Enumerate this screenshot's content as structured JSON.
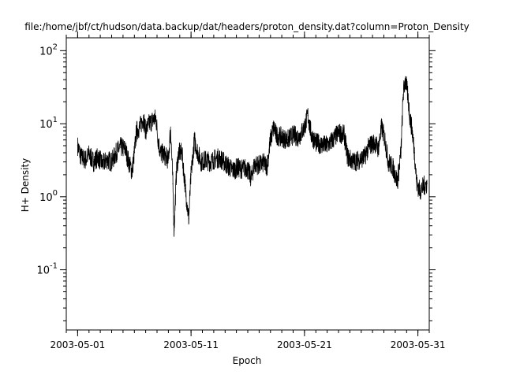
{
  "chart_data": {
    "type": "line",
    "title": "file:/home/jbf/ct/hudson/data.backup/dat/headers/proton_density.dat?column=Proton_Density",
    "xlabel": "Epoch",
    "ylabel": "H+ Density",
    "yscale": "log",
    "xlim": [
      "2003-04-30T00:00:00Z",
      "2003-06-01T00:00:00Z"
    ],
    "ylim": [
      0.015,
      150
    ],
    "grid": false,
    "line_color": "#000000",
    "x_ticks": [
      {
        "value": "2003-05-01T00:00:00Z",
        "label": "2003-05-01"
      },
      {
        "value": "2003-05-11T00:00:00Z",
        "label": "2003-05-11"
      },
      {
        "value": "2003-05-21T00:00:00Z",
        "label": "2003-05-21"
      },
      {
        "value": "2003-05-31T00:00:00Z",
        "label": "2003-05-31"
      }
    ],
    "y_ticks": [
      {
        "value": 0.1,
        "base": "10",
        "exp": "-1"
      },
      {
        "value": 1,
        "base": "10",
        "exp": "0"
      },
      {
        "value": 10,
        "base": "10",
        "exp": "1"
      },
      {
        "value": 100,
        "base": "10",
        "exp": "2"
      }
    ],
    "points": [
      [
        "2003-05-01T00:00",
        5
      ],
      [
        "2003-05-01T07:12",
        3.5
      ],
      [
        "2003-05-01T16:48",
        3.2
      ],
      [
        "2003-05-02T00:00",
        3.8
      ],
      [
        "2003-05-02T09:36",
        3.0
      ],
      [
        "2003-05-02T19:12",
        3.5
      ],
      [
        "2003-05-03T04:48",
        2.8
      ],
      [
        "2003-05-03T14:24",
        3.2
      ],
      [
        "2003-05-04T00:00",
        3.0
      ],
      [
        "2003-05-04T09:36",
        4.0
      ],
      [
        "2003-05-04T19:12",
        4.8
      ],
      [
        "2003-05-05T04:48",
        4.5
      ],
      [
        "2003-05-05T12:00",
        3.0
      ],
      [
        "2003-05-05T19:12",
        2.2
      ],
      [
        "2003-05-06T00:00",
        4.0
      ],
      [
        "2003-05-06T04:48",
        8
      ],
      [
        "2003-05-06T12:00",
        9
      ],
      [
        "2003-05-06T19:12",
        12
      ],
      [
        "2003-05-07T00:00",
        8
      ],
      [
        "2003-05-07T07:12",
        10
      ],
      [
        "2003-05-07T14:24",
        11
      ],
      [
        "2003-05-07T21:36",
        12
      ],
      [
        "2003-05-08T02:24",
        6
      ],
      [
        "2003-05-08T07:12",
        4
      ],
      [
        "2003-05-08T14:24",
        3.8
      ],
      [
        "2003-05-09T00:00",
        3.2
      ],
      [
        "2003-05-09T04:48",
        9
      ],
      [
        "2003-05-09T09:36",
        1.5
      ],
      [
        "2003-05-09T12:00",
        0.35
      ],
      [
        "2003-05-09T16:48",
        2
      ],
      [
        "2003-05-09T21:36",
        4
      ],
      [
        "2003-05-10T04:48",
        4
      ],
      [
        "2003-05-10T12:00",
        1.3
      ],
      [
        "2003-05-10T19:12",
        0.5
      ],
      [
        "2003-05-11T00:00",
        2
      ],
      [
        "2003-05-11T07:12",
        6
      ],
      [
        "2003-05-11T14:24",
        4
      ],
      [
        "2003-05-11T21:36",
        3
      ],
      [
        "2003-05-12T07:12",
        3.2
      ],
      [
        "2003-05-12T16:48",
        3
      ],
      [
        "2003-05-13T02:24",
        3.3
      ],
      [
        "2003-05-13T12:00",
        3.4
      ],
      [
        "2003-05-13T21:36",
        3.0
      ],
      [
        "2003-05-14T07:12",
        2.6
      ],
      [
        "2003-05-14T16:48",
        2.3
      ],
      [
        "2003-05-15T02:24",
        2.5
      ],
      [
        "2003-05-15T12:00",
        2.4
      ],
      [
        "2003-05-15T21:36",
        2.5
      ],
      [
        "2003-05-16T07:12",
        1.8
      ],
      [
        "2003-05-16T14:24",
        2.8
      ],
      [
        "2003-05-17T00:00",
        2.7
      ],
      [
        "2003-05-17T09:36",
        2.9
      ],
      [
        "2003-05-17T16:48",
        2.6
      ],
      [
        "2003-05-18T00:00",
        6
      ],
      [
        "2003-05-18T07:12",
        9
      ],
      [
        "2003-05-18T12:00",
        7
      ],
      [
        "2003-05-19T00:00",
        6.5
      ],
      [
        "2003-05-19T12:00",
        6
      ],
      [
        "2003-05-20T00:00",
        7
      ],
      [
        "2003-05-20T12:00",
        6.5
      ],
      [
        "2003-05-21T00:00",
        9
      ],
      [
        "2003-05-21T07:12",
        13
      ],
      [
        "2003-05-21T14:24",
        7
      ],
      [
        "2003-05-22T00:00",
        5.5
      ],
      [
        "2003-05-22T12:00",
        5.2
      ],
      [
        "2003-05-23T00:00",
        5.0
      ],
      [
        "2003-05-23T12:00",
        6
      ],
      [
        "2003-05-24T00:00",
        7.5
      ],
      [
        "2003-05-24T12:00",
        7
      ],
      [
        "2003-05-24T19:12",
        3.5
      ],
      [
        "2003-05-25T07:12",
        3
      ],
      [
        "2003-05-25T19:12",
        3.2
      ],
      [
        "2003-05-26T07:12",
        3.5
      ],
      [
        "2003-05-26T16:48",
        5
      ],
      [
        "2003-05-27T04:48",
        5.5
      ],
      [
        "2003-05-27T12:00",
        4.5
      ],
      [
        "2003-05-27T19:12",
        9
      ],
      [
        "2003-05-28T02:24",
        6
      ],
      [
        "2003-05-28T09:36",
        3
      ],
      [
        "2003-05-28T19:12",
        2.5
      ],
      [
        "2003-05-29T04:48",
        1.6
      ],
      [
        "2003-05-29T12:00",
        4
      ],
      [
        "2003-05-29T16:48",
        25
      ],
      [
        "2003-05-29T21:36",
        40
      ],
      [
        "2003-05-30T02:24",
        25
      ],
      [
        "2003-05-30T07:12",
        12
      ],
      [
        "2003-05-30T12:00",
        8
      ],
      [
        "2003-05-30T16:48",
        4
      ],
      [
        "2003-05-30T21:36",
        1.5
      ],
      [
        "2003-05-31T04:48",
        1.2
      ],
      [
        "2003-05-31T12:00",
        1.4
      ],
      [
        "2003-05-31T19:12",
        1.5
      ]
    ]
  }
}
